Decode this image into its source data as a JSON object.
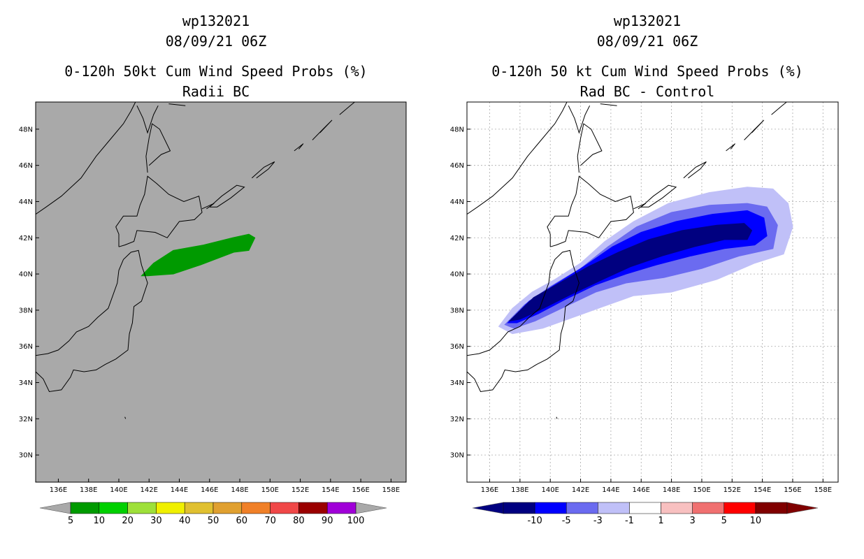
{
  "panels": [
    {
      "title_line1": "wp132021",
      "title_line2": "08/09/21 06Z",
      "title_line3": "0-120h 50kt Cum Wind Speed Probs (%)",
      "title_line4": "Radii BC"
    },
    {
      "title_line1": "wp132021",
      "title_line2": "08/09/21 06Z",
      "title_line3": "0-120h 50 kt Cum Wind Speed Probs (%)",
      "title_line4": "Rad BC - Control"
    }
  ],
  "chart_data": [
    {
      "type": "heatmap",
      "title": "0-120h 50kt Cum Wind Speed Probs (%)",
      "subtitle": "Radii BC",
      "storm": "wp132021",
      "time": "08/09/21 06Z",
      "xlim": [
        134.5,
        159.0
      ],
      "ylim": [
        28.5,
        49.5
      ],
      "x_ticks": [
        136,
        138,
        140,
        142,
        144,
        146,
        148,
        150,
        152,
        154,
        156,
        158
      ],
      "x_tick_labels": [
        "136E",
        "138E",
        "140E",
        "142E",
        "144E",
        "146E",
        "148E",
        "150E",
        "152E",
        "154E",
        "156E",
        "158E"
      ],
      "y_ticks": [
        30,
        32,
        34,
        36,
        38,
        40,
        42,
        44,
        46,
        48
      ],
      "y_tick_labels": [
        "30N",
        "32N",
        "34N",
        "36N",
        "38N",
        "40N",
        "42N",
        "44N",
        "46N",
        "48N"
      ],
      "grid": false,
      "colorbar": {
        "labels": [
          "5",
          "10",
          "20",
          "30",
          "40",
          "50",
          "60",
          "70",
          "80",
          "90",
          "100"
        ],
        "colors": [
          "#009a00",
          "#00d000",
          "#9ee03a",
          "#f0f000",
          "#e0c030",
          "#e0a030",
          "#f08028",
          "#f04848",
          "#9a0000",
          "#a000d8"
        ]
      },
      "regions": [
        {
          "level": "5-10",
          "color": "#009a00",
          "polygon": [
            [
              141.5,
              39.9
            ],
            [
              142.3,
              40.6
            ],
            [
              143.6,
              41.3
            ],
            [
              145.6,
              41.6
            ],
            [
              147.5,
              42.0
            ],
            [
              148.6,
              42.2
            ],
            [
              149.0,
              42.0
            ],
            [
              148.6,
              41.3
            ],
            [
              147.6,
              41.2
            ],
            [
              145.4,
              40.5
            ],
            [
              143.6,
              40.0
            ],
            [
              141.9,
              39.9
            ]
          ]
        }
      ]
    },
    {
      "type": "heatmap",
      "title": "0-120h 50 kt Cum Wind Speed Probs (%)",
      "subtitle": "Rad BC - Control",
      "storm": "wp132021",
      "time": "08/09/21 06Z",
      "xlim": [
        134.5,
        159.0
      ],
      "ylim": [
        28.5,
        49.5
      ],
      "x_ticks": [
        136,
        138,
        140,
        142,
        144,
        146,
        148,
        150,
        152,
        154,
        156,
        158
      ],
      "x_tick_labels": [
        "136E",
        "138E",
        "140E",
        "142E",
        "144E",
        "146E",
        "148E",
        "150E",
        "152E",
        "154E",
        "156E",
        "158E"
      ],
      "y_ticks": [
        30,
        32,
        34,
        36,
        38,
        40,
        42,
        44,
        46,
        48
      ],
      "y_tick_labels": [
        "30N",
        "32N",
        "34N",
        "36N",
        "38N",
        "40N",
        "42N",
        "44N",
        "46N",
        "48N"
      ],
      "grid": true,
      "colorbar": {
        "labels": [
          "-10",
          "-5",
          "-3",
          "-1",
          "1",
          "3",
          "5",
          "10"
        ],
        "colors": [
          "#000080",
          "#0000ff",
          "#6b6bf0",
          "#c0c0f8",
          "#ffffff",
          "#f8c0c0",
          "#f07070",
          "#ff0000",
          "#800000"
        ]
      },
      "regions": [
        {
          "level": "-1 to -3",
          "color": "#c0c0f8",
          "polygon": [
            [
              136.6,
              37.1
            ],
            [
              137.5,
              38.1
            ],
            [
              138.8,
              39.0
            ],
            [
              140.3,
              39.7
            ],
            [
              142.0,
              40.6
            ],
            [
              143.6,
              41.8
            ],
            [
              145.5,
              42.9
            ],
            [
              147.8,
              43.9
            ],
            [
              150.5,
              44.5
            ],
            [
              153.0,
              44.8
            ],
            [
              154.7,
              44.7
            ],
            [
              155.7,
              43.9
            ],
            [
              156.0,
              42.6
            ],
            [
              155.4,
              41.1
            ],
            [
              153.5,
              40.6
            ],
            [
              151.0,
              39.7
            ],
            [
              148.0,
              39.0
            ],
            [
              145.5,
              38.8
            ],
            [
              143.5,
              38.2
            ],
            [
              141.5,
              37.6
            ],
            [
              139.5,
              37.0
            ],
            [
              137.5,
              36.7
            ]
          ]
        },
        {
          "level": "-3 to -5",
          "color": "#6b6bf0",
          "polygon": [
            [
              137.0,
              37.2
            ],
            [
              138.3,
              38.3
            ],
            [
              140.0,
              39.3
            ],
            [
              142.0,
              40.3
            ],
            [
              143.8,
              41.5
            ],
            [
              145.7,
              42.6
            ],
            [
              148.0,
              43.4
            ],
            [
              150.5,
              43.8
            ],
            [
              153.0,
              43.9
            ],
            [
              154.3,
              43.7
            ],
            [
              155.0,
              42.7
            ],
            [
              154.7,
              41.4
            ],
            [
              152.5,
              41.0
            ],
            [
              150.0,
              40.3
            ],
            [
              147.5,
              39.8
            ],
            [
              145.0,
              39.5
            ],
            [
              143.0,
              39.0
            ],
            [
              141.0,
              38.2
            ],
            [
              139.0,
              37.4
            ],
            [
              137.6,
              37.0
            ]
          ]
        },
        {
          "level": "-5 to -10",
          "color": "#0000ff",
          "polygon": [
            [
              137.2,
              37.3
            ],
            [
              138.6,
              38.5
            ],
            [
              140.3,
              39.4
            ],
            [
              142.2,
              40.4
            ],
            [
              144.1,
              41.5
            ],
            [
              146.0,
              42.3
            ],
            [
              148.3,
              42.9
            ],
            [
              150.7,
              43.3
            ],
            [
              153.0,
              43.5
            ],
            [
              154.1,
              43.1
            ],
            [
              154.3,
              42.1
            ],
            [
              153.5,
              41.6
            ],
            [
              151.5,
              41.4
            ],
            [
              149.3,
              41.0
            ],
            [
              147.0,
              40.5
            ],
            [
              145.0,
              40.0
            ],
            [
              143.0,
              39.4
            ],
            [
              141.0,
              38.6
            ],
            [
              139.2,
              37.8
            ],
            [
              137.8,
              37.3
            ]
          ]
        },
        {
          "level": "< -10",
          "color": "#000080",
          "polygon": [
            [
              137.3,
              37.4
            ],
            [
              138.9,
              38.7
            ],
            [
              140.6,
              39.5
            ],
            [
              142.5,
              40.4
            ],
            [
              144.5,
              41.2
            ],
            [
              146.5,
              41.9
            ],
            [
              148.7,
              42.4
            ],
            [
              151.0,
              42.7
            ],
            [
              152.8,
              42.8
            ],
            [
              153.3,
              42.4
            ],
            [
              153.0,
              41.9
            ],
            [
              151.5,
              41.9
            ],
            [
              149.5,
              41.5
            ],
            [
              147.4,
              41.0
            ],
            [
              145.3,
              40.4
            ],
            [
              143.2,
              39.6
            ],
            [
              141.2,
              38.8
            ],
            [
              139.3,
              38.0
            ],
            [
              138.0,
              37.5
            ]
          ]
        }
      ]
    }
  ]
}
